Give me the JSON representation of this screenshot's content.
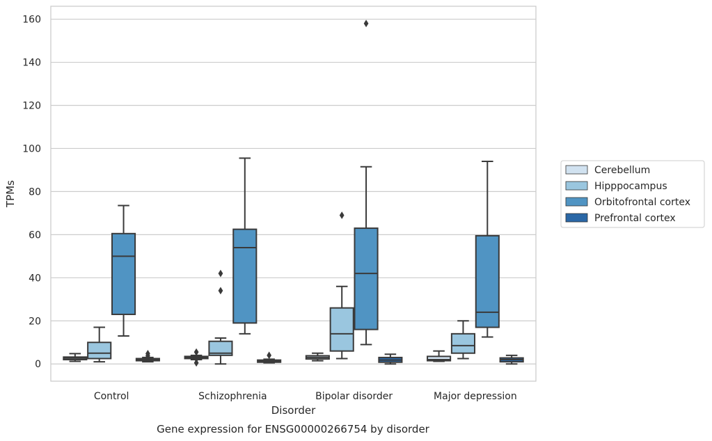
{
  "chart_data": {
    "type": "box",
    "title": "",
    "caption": "Gene expression for ENSG00000266754 by disorder",
    "xlabel": "Disorder",
    "ylabel": "TPMs",
    "ylim": [
      -8,
      166
    ],
    "yticks": [
      0,
      20,
      40,
      60,
      80,
      100,
      120,
      140,
      160
    ],
    "grid": "horizontal",
    "legend_position": "right",
    "categories": [
      "Control",
      "Schizophrenia",
      "Bipolar disorder",
      "Major depression"
    ],
    "series": [
      {
        "name": "Cerebellum",
        "color": "#d1e2f0",
        "boxes": [
          {
            "whisker_low": 1.2,
            "q1": 2.0,
            "median": 2.7,
            "q3": 3.2,
            "whisker_high": 4.8,
            "outliers": []
          },
          {
            "whisker_low": 2.0,
            "q1": 2.5,
            "median": 3.0,
            "q3": 3.5,
            "whisker_high": 4.0,
            "outliers": [
              5.5,
              0.5,
              3.0,
              2.3
            ]
          },
          {
            "whisker_low": 1.5,
            "q1": 2.3,
            "median": 3.0,
            "q3": 3.8,
            "whisker_high": 5.0,
            "outliers": []
          },
          {
            "whisker_low": 1.2,
            "q1": 1.5,
            "median": 2.0,
            "q3": 3.5,
            "whisker_high": 6.0,
            "outliers": []
          }
        ]
      },
      {
        "name": "Hipppocampus",
        "color": "#9ac6df",
        "boxes": [
          {
            "whisker_low": 1.0,
            "q1": 2.5,
            "median": 5.0,
            "q3": 10.0,
            "whisker_high": 17.0,
            "outliers": []
          },
          {
            "whisker_low": 0.0,
            "q1": 4.0,
            "median": 5.0,
            "q3": 10.5,
            "whisker_high": 12.0,
            "outliers": [
              42.0,
              34.0
            ]
          },
          {
            "whisker_low": 2.5,
            "q1": 6.0,
            "median": 14.0,
            "q3": 26.0,
            "whisker_high": 36.0,
            "outliers": [
              69.0
            ]
          },
          {
            "whisker_low": 2.5,
            "q1": 5.0,
            "median": 8.5,
            "q3": 14.0,
            "whisker_high": 20.0,
            "outliers": []
          }
        ]
      },
      {
        "name": "Orbitofrontal cortex",
        "color": "#5094c3",
        "boxes": [
          {
            "whisker_low": 13.0,
            "q1": 23.0,
            "median": 50.0,
            "q3": 60.5,
            "whisker_high": 73.5,
            "outliers": []
          },
          {
            "whisker_low": 14.0,
            "q1": 19.0,
            "median": 54.0,
            "q3": 62.5,
            "whisker_high": 95.5,
            "outliers": []
          },
          {
            "whisker_low": 9.0,
            "q1": 16.0,
            "median": 42.0,
            "q3": 63.0,
            "whisker_high": 91.5,
            "outliers": [
              158.0
            ]
          },
          {
            "whisker_low": 12.5,
            "q1": 17.0,
            "median": 24.0,
            "q3": 59.5,
            "whisker_high": 94.0,
            "outliers": []
          }
        ]
      },
      {
        "name": "Prefrontal cortex",
        "color": "#2a67a6",
        "boxes": [
          {
            "whisker_low": 1.0,
            "q1": 1.5,
            "median": 2.0,
            "q3": 2.5,
            "whisker_high": 3.0,
            "outliers": [
              4.8,
              3.8
            ]
          },
          {
            "whisker_low": 0.5,
            "q1": 0.8,
            "median": 1.2,
            "q3": 1.8,
            "whisker_high": 2.2,
            "outliers": [
              4.0
            ]
          },
          {
            "whisker_low": 0.0,
            "q1": 0.8,
            "median": 1.8,
            "q3": 3.0,
            "whisker_high": 4.5,
            "outliers": []
          },
          {
            "whisker_low": 0.0,
            "q1": 1.0,
            "median": 2.0,
            "q3": 2.8,
            "whisker_high": 4.0,
            "outliers": []
          }
        ]
      }
    ]
  }
}
